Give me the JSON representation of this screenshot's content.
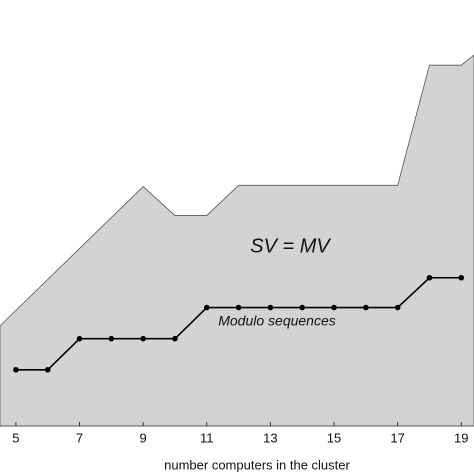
{
  "chart_data": {
    "type": "line",
    "x_label": "number computers in the cluster",
    "annotations": [
      "SV = MV",
      "Modulo sequences"
    ],
    "xlim": [
      4.5,
      19.4
    ],
    "ylim": [
      0,
      100
    ],
    "xticks": [
      5,
      7,
      9,
      11,
      13,
      15,
      17,
      19
    ],
    "series": [
      {
        "color": "#d3d3d3",
        "area": true,
        "x": [
          4.5,
          9,
          10,
          11,
          12,
          17,
          18,
          19,
          19.4
        ],
        "values": [
          23.5,
          56.2,
          49.4,
          49.4,
          56.5,
          56.5,
          84.7,
          84.7,
          87.1
        ]
      },
      {
        "color": "#000000",
        "area": false,
        "x": [
          5,
          6,
          7,
          8,
          9,
          10,
          11,
          12,
          13,
          14,
          15,
          16,
          17,
          18,
          19
        ],
        "values": [
          13.2,
          13.2,
          20.5,
          20.5,
          20.5,
          20.5,
          27.8,
          27.8,
          27.8,
          27.8,
          27.8,
          27.8,
          27.8,
          34.8,
          34.8
        ]
      }
    ]
  }
}
